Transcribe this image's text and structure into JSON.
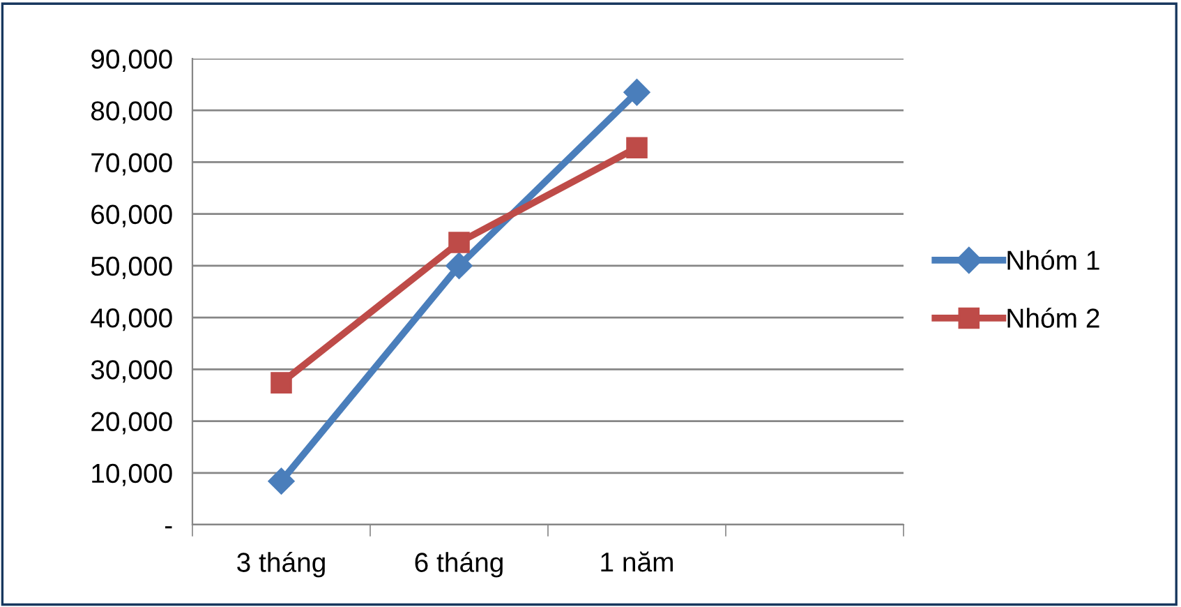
{
  "chart_data": {
    "type": "line",
    "categories": [
      "3 tháng",
      "6 tháng",
      "1 năm",
      null
    ],
    "series": [
      {
        "name": "Nhóm 1",
        "color": "#4a7ebb",
        "marker": "diamond",
        "values": [
          8400,
          50000,
          83500,
          null
        ]
      },
      {
        "name": "Nhóm 2",
        "color": "#be4b48",
        "marker": "square",
        "values": [
          27400,
          54500,
          72800,
          null
        ]
      }
    ],
    "ylim": [
      0,
      90000
    ],
    "yticks": [
      {
        "value": 0,
        "label": "-"
      },
      {
        "value": 10000,
        "label": "10,000"
      },
      {
        "value": 20000,
        "label": "20,000"
      },
      {
        "value": 30000,
        "label": "30,000"
      },
      {
        "value": 40000,
        "label": "40,000"
      },
      {
        "value": 50000,
        "label": "50,000"
      },
      {
        "value": 60000,
        "label": "60,000"
      },
      {
        "value": 70000,
        "label": "70,000"
      },
      {
        "value": 80000,
        "label": "80,000"
      },
      {
        "value": 90000,
        "label": "90,000"
      }
    ],
    "grid": "y",
    "legend": "right",
    "line_style": "solid"
  }
}
